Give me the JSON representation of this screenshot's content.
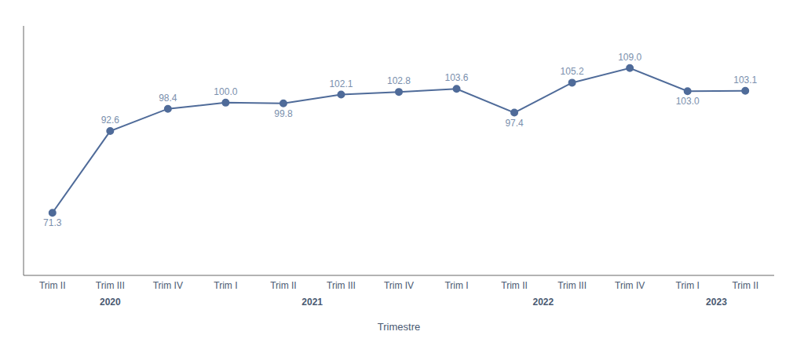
{
  "chart_data": {
    "type": "line",
    "categories": [
      "Trim II",
      "Trim III",
      "Trim IV",
      "Trim I",
      "Trim II",
      "Trim III",
      "Trim IV",
      "Trim I",
      "Trim II",
      "Trim III",
      "Trim IV",
      "Trim I",
      "Trim II"
    ],
    "values": [
      71.3,
      92.6,
      98.4,
      100.0,
      99.8,
      102.1,
      102.8,
      103.6,
      97.4,
      105.2,
      109.0,
      103.0,
      103.1
    ],
    "value_labels": [
      "71.3",
      "92.6",
      "98.4",
      "100.0",
      "99.8",
      "102.1",
      "102.8",
      "103.6",
      "97.4",
      "105.2",
      "109.0",
      "103.0",
      "103.1"
    ],
    "color": "#4f6b99",
    "xlabel": "Trimestre",
    "ylim": [
      55,
      120
    ],
    "data_labels": true,
    "tick_labels": "x",
    "grid": false,
    "marker": "o",
    "annotations": [
      {
        "text": "2020",
        "x": 1
      },
      {
        "text": "2021",
        "x": 4.5
      },
      {
        "text": "2022",
        "x": 8.5
      },
      {
        "text": "2023",
        "x": 11.5
      }
    ]
  }
}
